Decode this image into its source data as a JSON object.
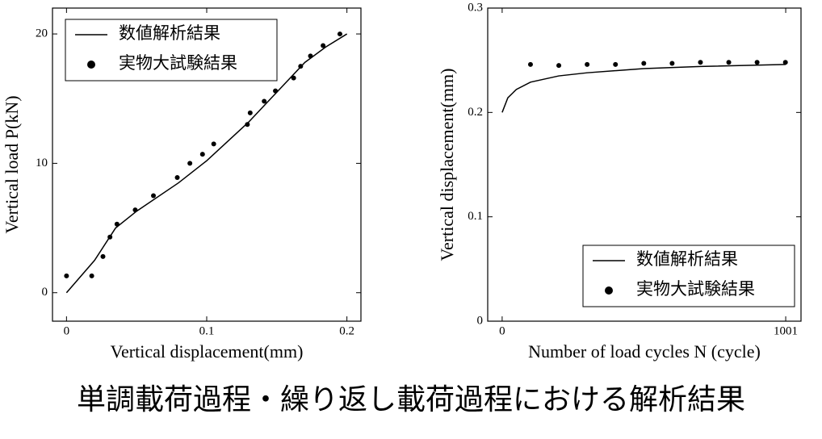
{
  "chart_data": [
    {
      "type": "line-scatter",
      "xlabel": "Vertical displacement(mm)",
      "ylabel": "Vertical load P(kN)",
      "xlim": [
        -0.01,
        0.21
      ],
      "ylim": [
        -2.2,
        22
      ],
      "xticks": [
        0,
        0.1,
        0.2
      ],
      "yticks": [
        0,
        10,
        20
      ],
      "legend": "upper left",
      "series": [
        {
          "name": "数値解析結果",
          "kind": "line",
          "color": "#000000",
          "x": [
            0,
            0.02,
            0.035,
            0.05,
            0.08,
            0.1,
            0.13,
            0.15,
            0.17,
            0.185,
            0.2
          ],
          "values": [
            0,
            2.5,
            5,
            6.3,
            8.5,
            10.2,
            13.2,
            15.5,
            17.8,
            19,
            20
          ]
        },
        {
          "name": "実物大試験結果",
          "kind": "scatter",
          "color": "#000000",
          "x": [
            0,
            0.018,
            0.026,
            0.031,
            0.036,
            0.049,
            0.062,
            0.079,
            0.088,
            0.097,
            0.105,
            0.129,
            0.131,
            0.141,
            0.149,
            0.162,
            0.167,
            0.174,
            0.183,
            0.195
          ],
          "values": [
            1.3,
            1.3,
            2.8,
            4.3,
            5.3,
            6.4,
            7.5,
            8.9,
            10.0,
            10.7,
            11.5,
            13.0,
            13.9,
            14.8,
            15.6,
            16.6,
            17.5,
            18.3,
            19.1,
            20.0
          ]
        }
      ]
    },
    {
      "type": "line-scatter",
      "xlabel": "Number of load cycles N (cycle)",
      "ylabel": "Vertical displacement(mm)",
      "xlim": [
        -51,
        1055
      ],
      "ylim": [
        0,
        0.3
      ],
      "xticks": [
        0,
        1001
      ],
      "yticks": [
        0,
        0.1,
        0.2,
        0.3
      ],
      "legend": "lower right",
      "series": [
        {
          "name": "数値解析結果",
          "kind": "line",
          "color": "#000000",
          "x": [
            0,
            20,
            50,
            100,
            200,
            300,
            500,
            700,
            1001
          ],
          "values": [
            0.2,
            0.214,
            0.222,
            0.229,
            0.235,
            0.238,
            0.242,
            0.244,
            0.246
          ]
        },
        {
          "name": "実物大試験結果",
          "kind": "scatter",
          "color": "#000000",
          "x": [
            100,
            200,
            300,
            400,
            500,
            600,
            700,
            800,
            900,
            1000
          ],
          "values": [
            0.246,
            0.245,
            0.246,
            0.246,
            0.247,
            0.247,
            0.248,
            0.248,
            0.248,
            0.248
          ]
        }
      ]
    }
  ],
  "caption": "単調載荷過程・繰り返し載荷過程における解析結果"
}
